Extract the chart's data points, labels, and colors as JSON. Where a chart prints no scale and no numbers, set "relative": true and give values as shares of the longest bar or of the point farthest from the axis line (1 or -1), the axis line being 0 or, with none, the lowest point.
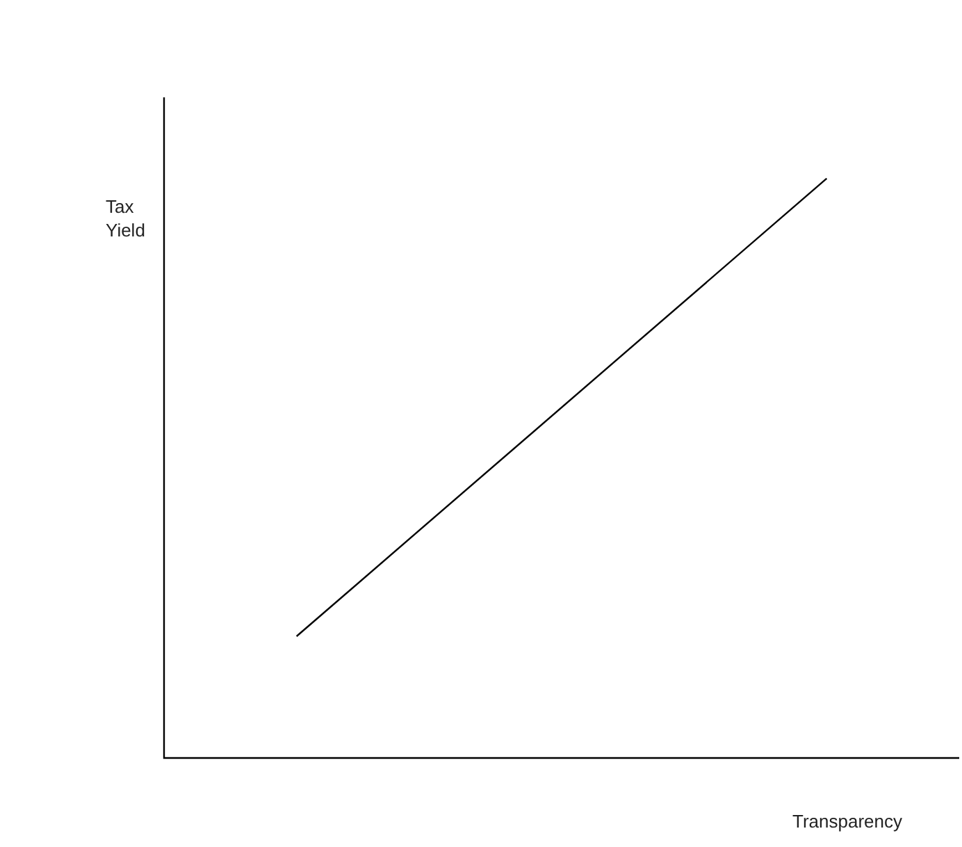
{
  "chart_data": {
    "type": "line",
    "relative": true,
    "xlabel": "Transparency",
    "ylabel": "Tax\nYield",
    "categories": [
      null,
      null,
      null,
      null,
      null,
      null,
      null
    ],
    "values": [
      null,
      0.21,
      null,
      null,
      null,
      1,
      null
    ],
    "color": "#000000",
    "tick_labels": false,
    "legend": false
  }
}
